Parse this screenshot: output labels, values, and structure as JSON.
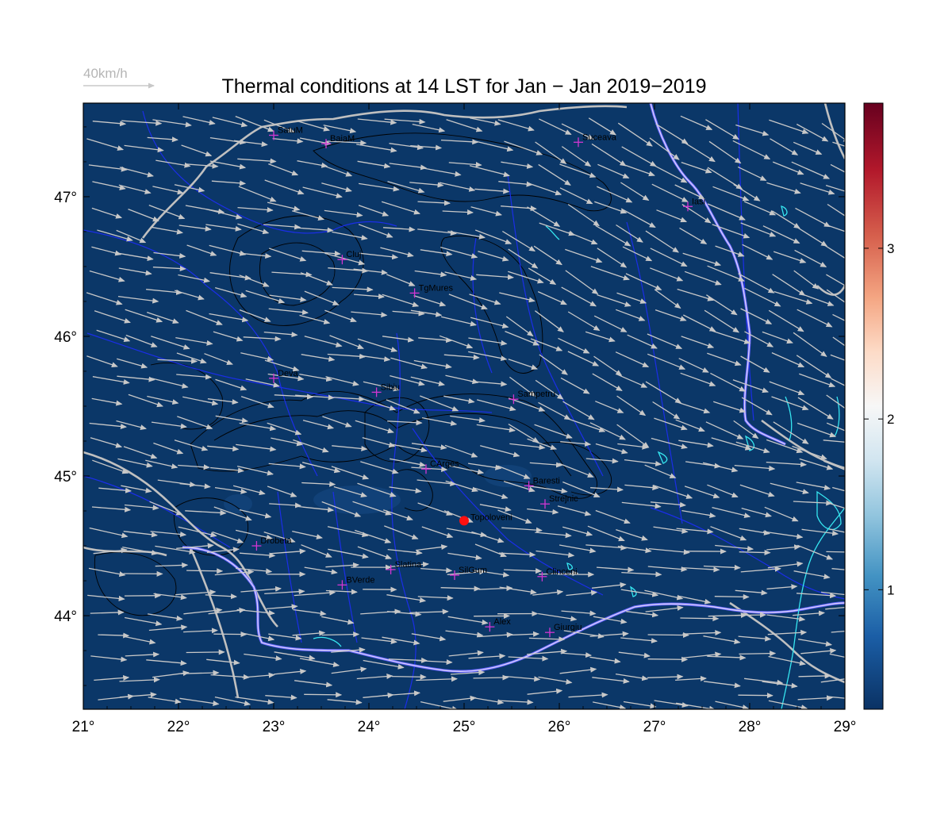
{
  "title": "Thermal conditions at 14 LST for Jan − Jan  2019−2019",
  "reference_vector": {
    "label": "40km/h"
  },
  "colors": {
    "map_fill": "#0b3768",
    "wind_arrow": "#c8c8c8",
    "border": "#c0c0c0",
    "river": "#1b2ee8",
    "danube": "#c9b8ff",
    "lake": "#36e6f0",
    "contour": "#000000",
    "station": "#d236d2",
    "highlight": "#ff1010"
  },
  "map": {
    "lon_range": [
      21,
      29
    ],
    "lat_range": [
      43.33,
      47.67
    ],
    "x_ticks": [
      "21°",
      "22°",
      "23°",
      "24°",
      "25°",
      "26°",
      "27°",
      "28°",
      "29°"
    ],
    "y_ticks": [
      "44°",
      "45°",
      "46°",
      "47°"
    ],
    "y_tick_values": [
      44,
      45,
      46,
      47
    ]
  },
  "colorbar": {
    "range": [
      0.3,
      3.85
    ],
    "ticks": [
      "1",
      "2",
      "3"
    ],
    "tick_values": [
      1,
      2,
      3
    ],
    "colors": [
      "#0a3264",
      "#1b5ea6",
      "#4393c3",
      "#92c5de",
      "#d1e5f0",
      "#f7f7f7",
      "#fddbc7",
      "#f4a582",
      "#d6604d",
      "#b2182b",
      "#67001f"
    ]
  },
  "stations": [
    {
      "name": "SatuM",
      "lon": 23.0,
      "lat": 47.44
    },
    {
      "name": "BaiaM",
      "lon": 23.55,
      "lat": 47.38
    },
    {
      "name": "Suceava",
      "lon": 26.2,
      "lat": 47.39
    },
    {
      "name": "Iasi",
      "lon": 27.35,
      "lat": 46.93
    },
    {
      "name": "Cluj",
      "lon": 23.72,
      "lat": 46.55
    },
    {
      "name": "TgMures",
      "lon": 24.48,
      "lat": 46.31
    },
    {
      "name": "Deva",
      "lon": 23.0,
      "lat": 45.7
    },
    {
      "name": "Sibiu",
      "lon": 24.08,
      "lat": 45.6
    },
    {
      "name": "Sampetru",
      "lon": 25.52,
      "lat": 45.55
    },
    {
      "name": "CArges",
      "lon": 24.6,
      "lat": 45.05
    },
    {
      "name": "Baresti",
      "lon": 25.68,
      "lat": 44.93
    },
    {
      "name": "Strejnic",
      "lon": 25.85,
      "lat": 44.8
    },
    {
      "name": "Drobeta",
      "lon": 22.82,
      "lat": 44.5
    },
    {
      "name": "Slatina",
      "lon": 24.23,
      "lat": 44.33
    },
    {
      "name": "SilGum",
      "lon": 24.9,
      "lat": 44.29
    },
    {
      "name": "Clinceni",
      "lon": 25.82,
      "lat": 44.28
    },
    {
      "name": "BVerde",
      "lon": 23.72,
      "lat": 44.22
    },
    {
      "name": "Alex",
      "lon": 25.27,
      "lat": 43.92
    },
    {
      "name": "Giurgiu",
      "lon": 25.9,
      "lat": 43.88
    }
  ],
  "highlight_station": {
    "name": "Topoloveni",
    "lon": 25.0,
    "lat": 44.68
  }
}
